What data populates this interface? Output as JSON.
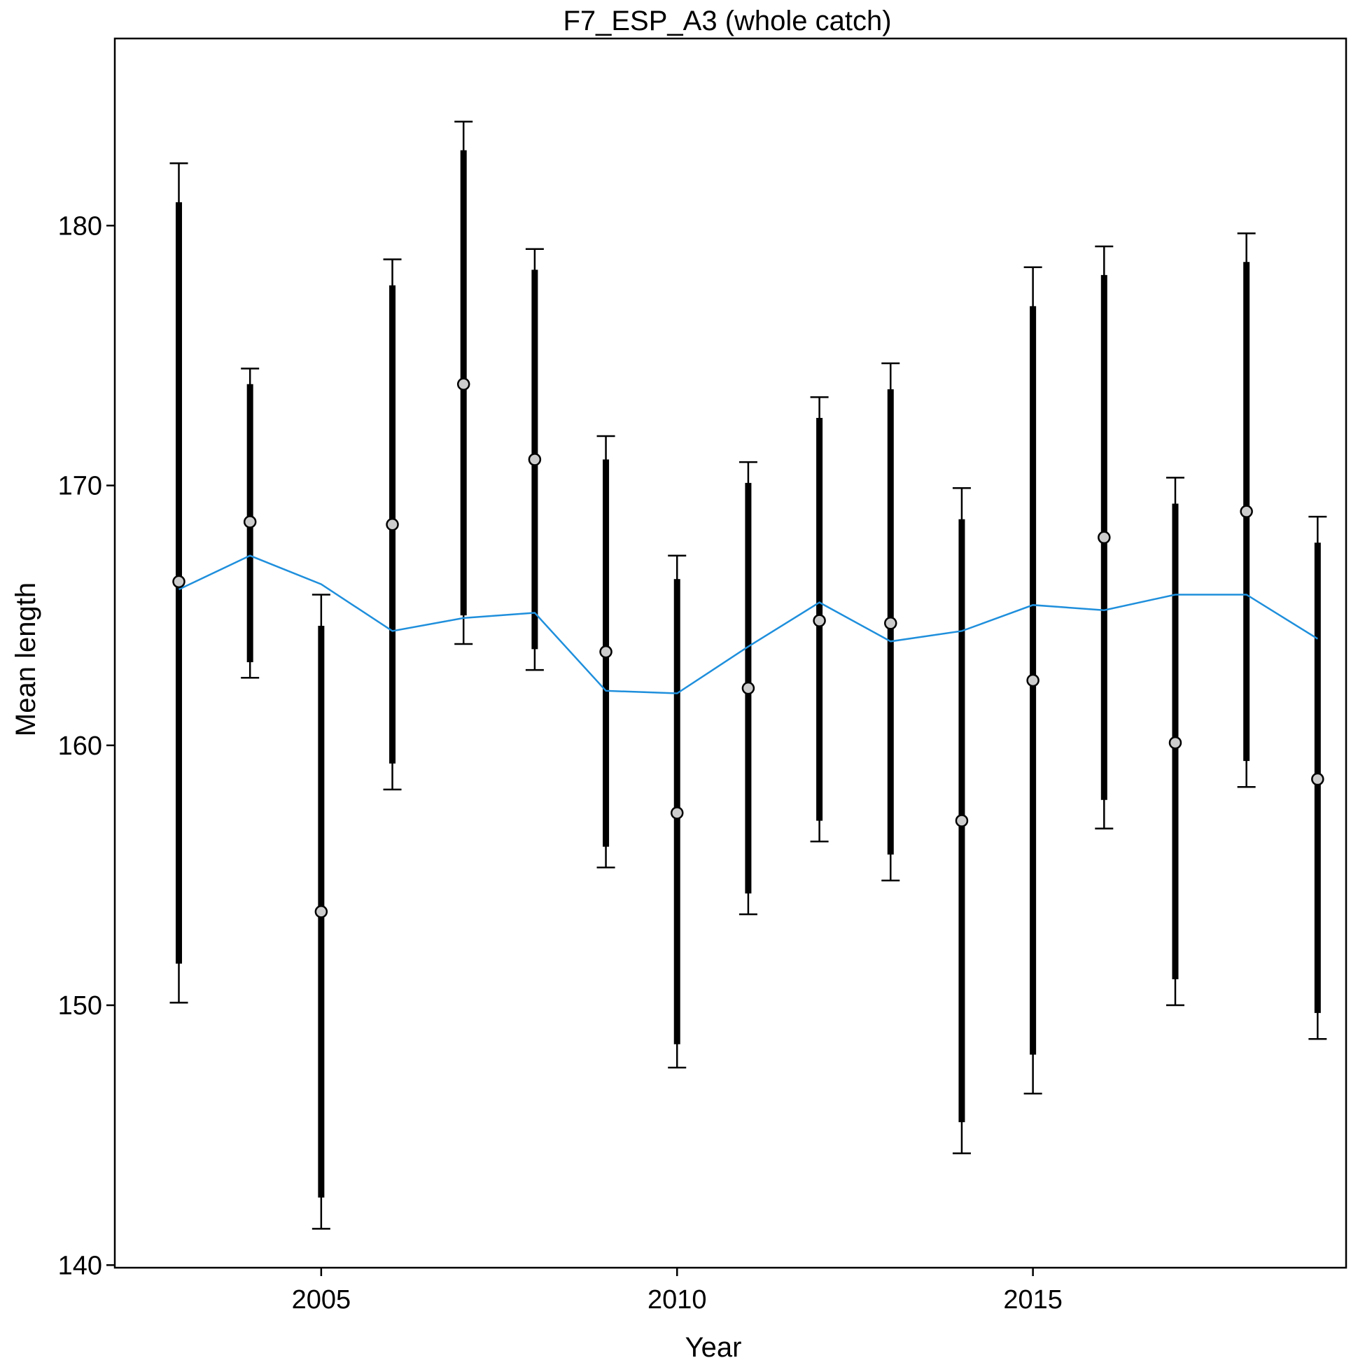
{
  "chart_data": {
    "type": "scatter",
    "title": "F7_ESP_A3 (whole catch)",
    "xlabel": "Year",
    "ylabel": "Mean length",
    "xlim": [
      2002.1,
      2019.4
    ],
    "ylim": [
      139.9,
      187.2
    ],
    "xticks": [
      2005,
      2010,
      2015
    ],
    "yticks": [
      140,
      150,
      160,
      170,
      180
    ],
    "grid": false,
    "legend": "none",
    "colors": {
      "points": "#cccccc",
      "errorbars": "#000000",
      "expected_line": "#1f8fdc"
    },
    "series": [
      {
        "kind": "observed",
        "points": [
          {
            "x": 2003,
            "y": 166.3,
            "inner": [
              151.6,
              180.9
            ],
            "outer": [
              150.1,
              182.4
            ]
          },
          {
            "x": 2004,
            "y": 168.6,
            "inner": [
              163.2,
              173.9
            ],
            "outer": [
              162.6,
              174.5
            ]
          },
          {
            "x": 2005,
            "y": 153.6,
            "inner": [
              142.6,
              164.6
            ],
            "outer": [
              141.4,
              165.8
            ]
          },
          {
            "x": 2006,
            "y": 168.5,
            "inner": [
              159.3,
              177.7
            ],
            "outer": [
              158.3,
              178.7
            ]
          },
          {
            "x": 2007,
            "y": 173.9,
            "inner": [
              165.0,
              182.9
            ],
            "outer": [
              163.9,
              184.0
            ]
          },
          {
            "x": 2008,
            "y": 171.0,
            "inner": [
              163.7,
              178.3
            ],
            "outer": [
              162.9,
              179.1
            ]
          },
          {
            "x": 2009,
            "y": 163.6,
            "inner": [
              156.1,
              171.0
            ],
            "outer": [
              155.3,
              171.9
            ]
          },
          {
            "x": 2010,
            "y": 157.4,
            "inner": [
              148.5,
              166.4
            ],
            "outer": [
              147.6,
              167.3
            ]
          },
          {
            "x": 2011,
            "y": 162.2,
            "inner": [
              154.3,
              170.1
            ],
            "outer": [
              153.5,
              170.9
            ]
          },
          {
            "x": 2012,
            "y": 164.8,
            "inner": [
              157.1,
              172.6
            ],
            "outer": [
              156.3,
              173.4
            ]
          },
          {
            "x": 2013,
            "y": 164.7,
            "inner": [
              155.8,
              173.7
            ],
            "outer": [
              154.8,
              174.7
            ]
          },
          {
            "x": 2014,
            "y": 157.1,
            "inner": [
              145.5,
              168.7
            ],
            "outer": [
              144.3,
              169.9
            ]
          },
          {
            "x": 2015,
            "y": 162.5,
            "inner": [
              148.1,
              176.9
            ],
            "outer": [
              146.6,
              178.4
            ]
          },
          {
            "x": 2016,
            "y": 168.0,
            "inner": [
              157.9,
              178.1
            ],
            "outer": [
              156.8,
              179.2
            ]
          },
          {
            "x": 2017,
            "y": 160.1,
            "inner": [
              151.0,
              169.3
            ],
            "outer": [
              150.0,
              170.3
            ]
          },
          {
            "x": 2018,
            "y": 169.0,
            "inner": [
              159.4,
              178.6
            ],
            "outer": [
              158.4,
              179.7
            ]
          },
          {
            "x": 2019,
            "y": 158.7,
            "inner": [
              149.7,
              167.8
            ],
            "outer": [
              148.7,
              168.8
            ]
          }
        ]
      },
      {
        "kind": "expected",
        "x": [
          2003,
          2004,
          2005,
          2006,
          2007,
          2008,
          2009,
          2010,
          2011,
          2012,
          2013,
          2014,
          2015,
          2016,
          2017,
          2018,
          2019
        ],
        "y": [
          166.0,
          167.3,
          166.2,
          164.4,
          164.9,
          165.1,
          162.1,
          162.0,
          163.8,
          165.5,
          164.0,
          164.4,
          165.4,
          165.2,
          165.8,
          165.8,
          164.1
        ]
      }
    ]
  }
}
